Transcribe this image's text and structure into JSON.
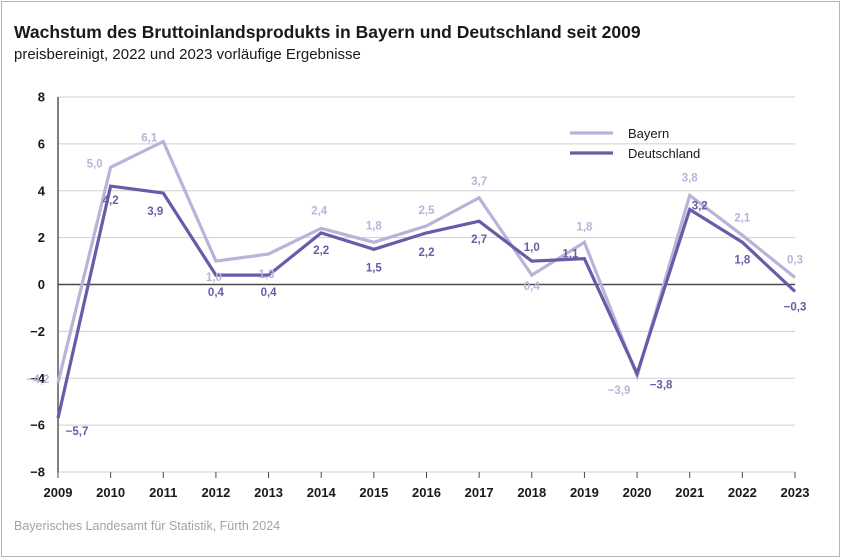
{
  "title": "Wachstum des Bruttoinlandsprodukts in Bayern und Deutschland seit 2009",
  "subtitle": "preisbereinigt, 2022 und 2023 vorläufige Ergebnisse",
  "source": "Bayerisches Landesamt für Statistik, Fürth 2024",
  "colors": {
    "bayern": "#b9b3d9",
    "deutschland": "#6b5aa8",
    "grid": "#cfcfcf",
    "zero": "#4a4a4a"
  },
  "chart_data": {
    "type": "line",
    "x": [
      "2009",
      "2010",
      "2011",
      "2012",
      "2013",
      "2014",
      "2015",
      "2016",
      "2017",
      "2018",
      "2019",
      "2020",
      "2021",
      "2022",
      "2023"
    ],
    "series": [
      {
        "name": "Bayern",
        "values": [
          -4.2,
          5.0,
          6.1,
          1.0,
          1.3,
          2.4,
          1.8,
          2.5,
          3.7,
          0.4,
          1.8,
          -3.9,
          3.8,
          2.1,
          0.3
        ],
        "labels": [
          "−4,2",
          "5,0",
          "6,1",
          "1,0",
          "1,3",
          "2,4",
          "1,8",
          "2,5",
          "3,7",
          "0,4",
          "1,8",
          "−3,9",
          "3,8",
          "2,1",
          "0,3"
        ]
      },
      {
        "name": "Deutschland",
        "values": [
          -5.7,
          4.2,
          3.9,
          0.4,
          0.4,
          2.2,
          1.5,
          2.2,
          2.7,
          1.0,
          1.1,
          -3.8,
          3.2,
          1.8,
          -0.3
        ],
        "labels": [
          "−5,7",
          "4,2",
          "3,9",
          "0,4",
          "0,4",
          "2,2",
          "1,5",
          "2,2",
          "2,7",
          "1,0",
          "1,1",
          "−3,8",
          "3,2",
          "1,8",
          "−0,3"
        ]
      }
    ],
    "ylim": [
      -8,
      8
    ],
    "yticks": [
      -8,
      -6,
      -4,
      -2,
      0,
      2,
      4,
      6,
      8
    ],
    "ytick_labels": [
      "−8",
      "−6",
      "−4",
      "−2",
      "0",
      "2",
      "4",
      "6",
      "8"
    ],
    "grid": true,
    "legend": "top-right",
    "xlabel": "",
    "ylabel": ""
  }
}
